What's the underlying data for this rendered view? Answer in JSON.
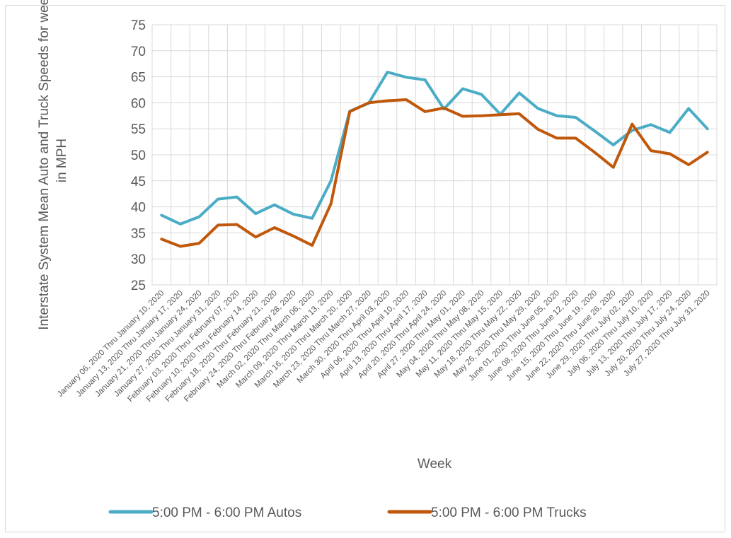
{
  "chart_data": {
    "type": "line",
    "title": "",
    "xlabel": "Week",
    "ylabel": "Interstate System Mean Auto and Truck Speeds for week in MPH",
    "ylabel_lines": [
      "Interstate System Mean Auto and Truck Speeds for week",
      "in MPH"
    ],
    "ylim": [
      25,
      75
    ],
    "yticks": [
      25,
      30,
      35,
      40,
      45,
      50,
      55,
      60,
      65,
      70,
      75
    ],
    "grid": true,
    "legend_position": "bottom",
    "categories": [
      "January 06, 2020 Thru January 10, 2020",
      "January 13, 2020 Thru January 17, 2020",
      "January 21, 2020 Thru January 24, 2020",
      "January 27, 2020 Thru January 31, 2020",
      "February 03, 2020 Thru February 07, 2020",
      "February 10, 2020 Thru February 14, 2020",
      "February 18, 2020 Thru February 21, 2020",
      "February 24, 2020 Thru February 28, 2020",
      "March 02, 2020 Thru March 06, 2020",
      "March 09, 2020 Thru March 13, 2020",
      "March 16, 2020 Thru March 20, 2020",
      "March 23, 2020 Thru March 27, 2020",
      "March 30, 2020 Thru April 03, 2020",
      "April 06, 2020 Thru April 10, 2020",
      "April 13, 2020 Thru April 17, 2020",
      "April 20, 2020 Thru April 24, 2020",
      "April 27, 2020 Thru May 01, 2020",
      "May 04, 2020 Thru May 08, 2020",
      "May 11, 2020 Thru May 15, 2020",
      "May 18, 2020 Thru May 22, 2020",
      "May 26, 2020 Thru May 29, 2020",
      "June 01, 2020 Thru June 05, 2020",
      "June 08, 2020 Thru June 12, 2020",
      "June 15, 2020 Thru June 19, 2020",
      "June 22, 2020 Thru June 26, 2020",
      "June 29, 2020 Thru July 02, 2020",
      "July 06, 2020 Thru July 10, 2020",
      "July 13, 2020 Thru July 17, 2020",
      "July 20, 2020 Thru July 24, 2020",
      "July 27, 2020 Thru July 31, 2020"
    ],
    "series": [
      {
        "name": "5:00 PM - 6:00 PM Autos",
        "color": "#4bacc6",
        "values": [
          38.4,
          36.7,
          38.1,
          41.5,
          41.9,
          38.7,
          40.4,
          38.6,
          37.8,
          45.0,
          58.4,
          59.9,
          65.9,
          64.9,
          64.4,
          58.8,
          62.7,
          61.6,
          57.8,
          61.9,
          58.9,
          57.5,
          57.2,
          54.6,
          51.9,
          54.7,
          55.8,
          54.3,
          58.9,
          55.0
        ]
      },
      {
        "name": "5:00 PM - 6:00 PM Trucks",
        "color": "#c0580c",
        "values": [
          33.8,
          32.4,
          33.0,
          36.5,
          36.6,
          34.2,
          36.0,
          34.4,
          32.6,
          40.6,
          58.3,
          60.0,
          60.4,
          60.6,
          58.3,
          59.0,
          57.4,
          57.5,
          57.7,
          57.9,
          54.9,
          53.2,
          53.2,
          50.5,
          47.6,
          55.9,
          50.8,
          50.2,
          48.1,
          50.5
        ]
      }
    ]
  }
}
